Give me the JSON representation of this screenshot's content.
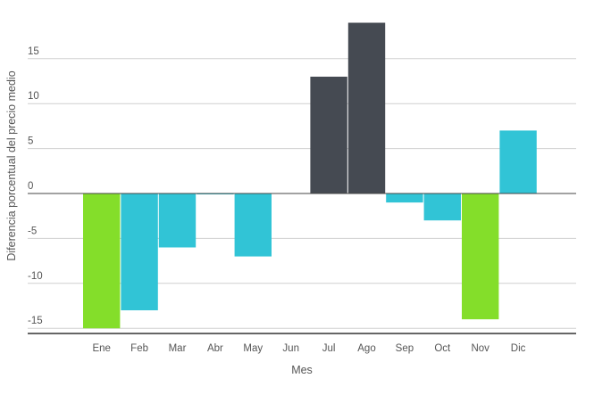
{
  "chart_data": {
    "type": "bar",
    "xlabel": "Mes",
    "ylabel": "Diferencia porcentual del precio medio",
    "categories": [
      "Ene",
      "Feb",
      "Mar",
      "Abr",
      "May",
      "Jun",
      "Jul",
      "Ago",
      "Sep",
      "Oct",
      "Nov",
      "Dic"
    ],
    "values": [
      -15,
      -13,
      -6,
      -0.1,
      -7,
      0,
      13,
      19,
      -1,
      -3,
      -14,
      7
    ],
    "bar_colors": [
      "#84de2a",
      "#31c4d6",
      "#31c4d6",
      "#31c4d6",
      "#31c4d6",
      "#31c4d6",
      "#454a52",
      "#454a52",
      "#31c4d6",
      "#31c4d6",
      "#84de2a",
      "#31c4d6"
    ],
    "yticks": [
      15,
      10,
      5,
      0,
      -5,
      -10,
      -15
    ],
    "ylim": [
      -15.6,
      19.2
    ],
    "grid": true,
    "legend": "none",
    "colors": {
      "negative_low": "#84de2a",
      "normal": "#31c4d6",
      "positive_high": "#454a52",
      "grid": "#cfcfcf",
      "zero_line": "#444444",
      "text": "#555555"
    }
  }
}
